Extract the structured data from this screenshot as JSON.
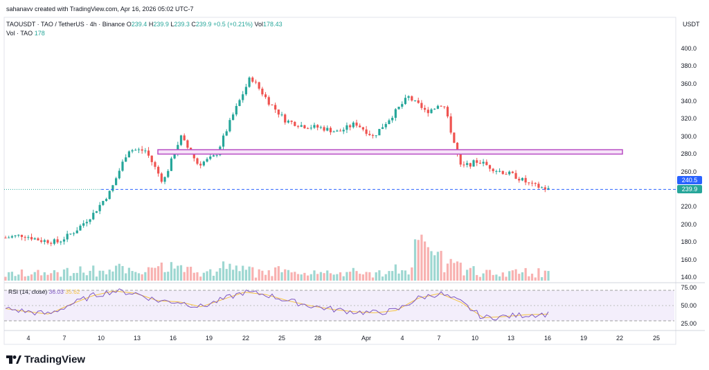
{
  "header": {
    "credit": "sahanavv created with TradingView.com, Apr 16, 2026 05:02 UTC-7",
    "symbol": "TAOUSDT · TAO / TetherUS · 4h · Binance",
    "o_label": "O",
    "o_value": "239.4",
    "h_label": "H",
    "h_value": "239.9",
    "l_label": "L",
    "l_value": "239.3",
    "c_label": "C",
    "c_value": "239.9",
    "change": "+0.5 (+0.21%)",
    "vol_label": "Vol",
    "vol_value": "178.43",
    "vol_series_label": "Vol · TAO",
    "vol_series_value": "178"
  },
  "price_axis": {
    "unit": "USDT",
    "ticks": [
      "400.0",
      "380.0",
      "360.0",
      "340.0",
      "320.0",
      "300.0",
      "280.0",
      "260.0",
      "220.0",
      "200.0",
      "180.0",
      "160.0",
      "140.0"
    ],
    "badge_high": "240.5",
    "badge_last": "239.9"
  },
  "rsi": {
    "label": "RSI (14, close)",
    "value": "36.03",
    "ma_value": "35.62",
    "ticks": [
      "75.00",
      "50.00",
      "25.00"
    ]
  },
  "time_axis": {
    "labels": [
      "4",
      "7",
      "10",
      "13",
      "16",
      "19",
      "22",
      "25",
      "28",
      "Apr",
      "4",
      "7",
      "10",
      "13",
      "16",
      "19",
      "22",
      "25"
    ]
  },
  "brand": {
    "name": "TradingView"
  },
  "colors": {
    "up": "#26a69a",
    "down": "#ef5350",
    "zone": "#b84ec4",
    "rsi": "#7e57c2",
    "rsi_ma": "#f5c342",
    "last_line": "#2962ff"
  },
  "chart_data": {
    "type": "candlestick",
    "timeframe": "4h",
    "y_range": [
      135,
      415
    ],
    "price_path_approx": [
      {
        "x": "Mar 2",
        "close": 185
      },
      {
        "x": "Mar 4",
        "close": 188
      },
      {
        "x": "Mar 6",
        "close": 182
      },
      {
        "x": "Mar 8",
        "close": 180
      },
      {
        "x": "Mar 10",
        "close": 193
      },
      {
        "x": "Mar 12",
        "close": 212
      },
      {
        "x": "Mar 13",
        "close": 238
      },
      {
        "x": "Mar 15",
        "close": 285
      },
      {
        "x": "Mar 17",
        "close": 284
      },
      {
        "x": "Mar 19",
        "close": 248
      },
      {
        "x": "Mar 20",
        "close": 300
      },
      {
        "x": "Mar 22",
        "close": 268
      },
      {
        "x": "Mar 23",
        "close": 278
      },
      {
        "x": "Mar 24",
        "close": 325
      },
      {
        "x": "Mar 25",
        "close": 368
      },
      {
        "x": "Mar 26",
        "close": 340
      },
      {
        "x": "Mar 28",
        "close": 318
      },
      {
        "x": "Mar 30",
        "close": 312
      },
      {
        "x": "Mar 31",
        "close": 310
      },
      {
        "x": "Apr 2",
        "close": 305
      },
      {
        "x": "Apr 4",
        "close": 315
      },
      {
        "x": "Apr 5",
        "close": 300
      },
      {
        "x": "Apr 6",
        "close": 322
      },
      {
        "x": "Apr 7",
        "close": 345
      },
      {
        "x": "Apr 8",
        "close": 328
      },
      {
        "x": "Apr 9",
        "close": 338
      },
      {
        "x": "Apr 10",
        "close": 265
      },
      {
        "x": "Apr 11",
        "close": 272
      },
      {
        "x": "Apr 12",
        "close": 262
      },
      {
        "x": "Apr 13",
        "close": 256
      },
      {
        "x": "Apr 14",
        "close": 245
      },
      {
        "x": "Apr 16",
        "close": 239.9
      }
    ],
    "zone": {
      "from": 280,
      "to": 285
    },
    "last_price": 239.9,
    "rsi_path_approx": [
      45,
      40,
      36,
      52,
      66,
      74,
      70,
      58,
      56,
      48,
      60,
      72,
      68,
      58,
      50,
      44,
      40,
      38,
      42,
      62,
      70,
      55,
      30,
      32,
      35,
      36.03
    ]
  }
}
